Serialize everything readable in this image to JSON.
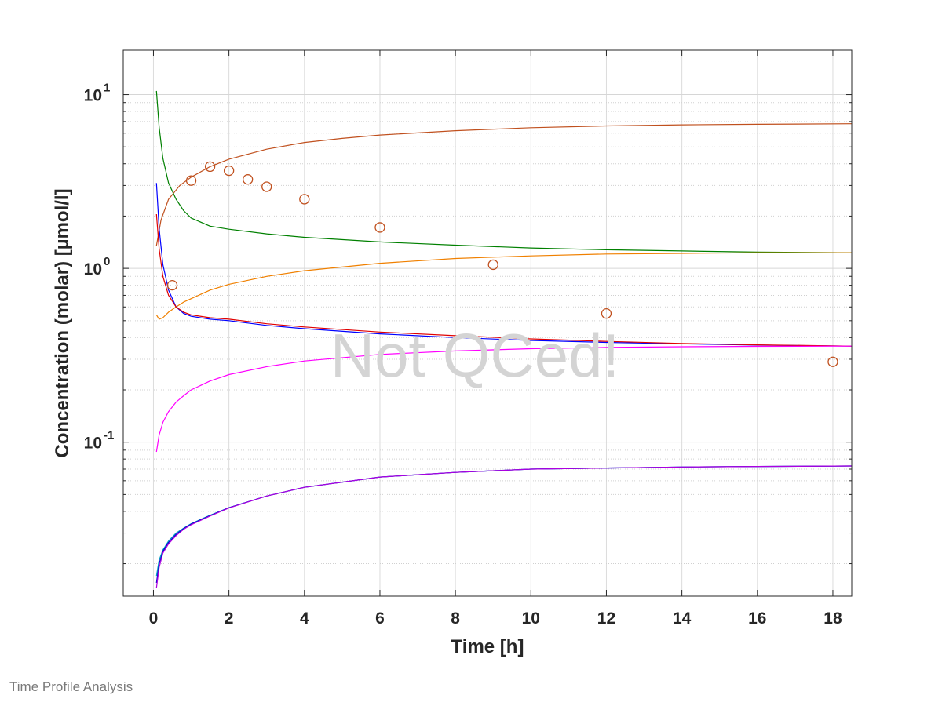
{
  "chart_data": {
    "type": "line",
    "xlabel": "Time [h]",
    "ylabel": "Concentration (molar) [µmol/l]",
    "xlim": [
      -0.8,
      18.5
    ],
    "ylim": [
      0.013,
      18
    ],
    "yscale": "log",
    "grid": true,
    "x_ticks": [
      0,
      2,
      4,
      6,
      8,
      10,
      12,
      14,
      16,
      18
    ],
    "y_ticks": [
      {
        "base": "10",
        "exp": "-1",
        "value": 0.1
      },
      {
        "base": "10",
        "exp": "0",
        "value": 1
      },
      {
        "base": "10",
        "exp": "1",
        "value": 10
      }
    ],
    "series": [
      {
        "color": "#c0501e",
        "x": [
          0.08,
          0.2,
          0.4,
          0.7,
          1,
          1.5,
          2,
          3,
          4,
          5,
          6,
          8,
          10,
          12,
          14,
          16,
          18.5
        ],
        "y": [
          1.35,
          1.9,
          2.5,
          3.0,
          3.35,
          3.85,
          4.25,
          4.85,
          5.3,
          5.6,
          5.85,
          6.2,
          6.45,
          6.6,
          6.7,
          6.75,
          6.8
        ]
      },
      {
        "color": "#008000",
        "x": [
          0.08,
          0.15,
          0.25,
          0.4,
          0.6,
          0.8,
          1,
          1.5,
          2,
          3,
          4,
          6,
          8,
          10,
          12,
          14,
          16,
          18.5
        ],
        "y": [
          10.5,
          6.5,
          4.3,
          3.1,
          2.5,
          2.15,
          1.95,
          1.75,
          1.68,
          1.58,
          1.51,
          1.42,
          1.36,
          1.31,
          1.28,
          1.26,
          1.24,
          1.23
        ]
      },
      {
        "color": "#f08000",
        "x": [
          0.08,
          0.15,
          0.25,
          0.4,
          0.6,
          0.8,
          1,
          1.5,
          2,
          3,
          4,
          6,
          8,
          10,
          12,
          14,
          16,
          18.5
        ],
        "y": [
          0.54,
          0.51,
          0.52,
          0.56,
          0.6,
          0.64,
          0.67,
          0.75,
          0.81,
          0.9,
          0.97,
          1.07,
          1.14,
          1.18,
          1.21,
          1.22,
          1.23,
          1.23
        ]
      },
      {
        "color": "#0000ff",
        "x": [
          0.08,
          0.15,
          0.25,
          0.4,
          0.6,
          0.8,
          1,
          1.5,
          2,
          3,
          4,
          6,
          8,
          10,
          12,
          14,
          16,
          18.5
        ],
        "y": [
          3.1,
          1.7,
          1.05,
          0.75,
          0.6,
          0.55,
          0.53,
          0.51,
          0.5,
          0.47,
          0.45,
          0.42,
          0.4,
          0.385,
          0.375,
          0.368,
          0.362,
          0.357
        ]
      },
      {
        "color": "#e00000",
        "x": [
          0.08,
          0.15,
          0.25,
          0.4,
          0.6,
          0.8,
          1,
          1.5,
          2,
          3,
          4,
          6,
          8,
          10,
          12,
          14,
          16,
          18.5
        ],
        "y": [
          2.05,
          1.3,
          0.9,
          0.7,
          0.6,
          0.56,
          0.54,
          0.52,
          0.51,
          0.48,
          0.46,
          0.43,
          0.41,
          0.393,
          0.38,
          0.37,
          0.363,
          0.357
        ]
      },
      {
        "color": "#ff00ff",
        "x": [
          0.08,
          0.15,
          0.25,
          0.4,
          0.6,
          0.8,
          1,
          1.5,
          2,
          3,
          4,
          6,
          8,
          10,
          12,
          14,
          16,
          18.5
        ],
        "y": [
          0.088,
          0.11,
          0.13,
          0.15,
          0.17,
          0.185,
          0.2,
          0.225,
          0.245,
          0.272,
          0.293,
          0.32,
          0.335,
          0.345,
          0.351,
          0.354,
          0.356,
          0.357
        ]
      },
      {
        "color": "#00a0c0",
        "x": [
          0.08,
          0.15,
          0.25,
          0.4,
          0.6,
          0.8,
          1,
          1.5,
          2,
          3,
          4,
          6,
          8,
          10,
          12,
          14,
          16,
          18.5
        ],
        "y": [
          0.017,
          0.021,
          0.024,
          0.027,
          0.03,
          0.032,
          0.034,
          0.038,
          0.042,
          0.049,
          0.055,
          0.063,
          0.067,
          0.07,
          0.071,
          0.072,
          0.0725,
          0.073
        ]
      },
      {
        "color": "#0000d0",
        "x": [
          0.08,
          0.15,
          0.25,
          0.4,
          0.6,
          0.8,
          1,
          1.5,
          2,
          3,
          4,
          6,
          8,
          10,
          12,
          14,
          16,
          18.5
        ],
        "y": [
          0.0155,
          0.02,
          0.0235,
          0.0265,
          0.0295,
          0.0318,
          0.0338,
          0.0378,
          0.042,
          0.049,
          0.055,
          0.063,
          0.067,
          0.07,
          0.071,
          0.072,
          0.0725,
          0.073
        ]
      },
      {
        "color": "#b000e0",
        "x": [
          0.08,
          0.15,
          0.25,
          0.4,
          0.6,
          0.8,
          1,
          1.5,
          2,
          3,
          4,
          6,
          8,
          10,
          12,
          14,
          16,
          18.5
        ],
        "y": [
          0.0145,
          0.019,
          0.023,
          0.026,
          0.029,
          0.0315,
          0.0335,
          0.0376,
          0.0418,
          0.049,
          0.055,
          0.063,
          0.067,
          0.07,
          0.071,
          0.072,
          0.0725,
          0.073
        ]
      }
    ],
    "observed": {
      "color": "#c0501e",
      "marker": "circle",
      "x": [
        0.5,
        1,
        1.5,
        2,
        2.5,
        3,
        4,
        6,
        9,
        12,
        18
      ],
      "y": [
        0.8,
        3.2,
        3.85,
        3.65,
        3.25,
        2.95,
        2.5,
        1.72,
        1.05,
        0.55,
        0.29
      ]
    },
    "annotation": "Not QCed!"
  },
  "footer": "Time Profile Analysis"
}
